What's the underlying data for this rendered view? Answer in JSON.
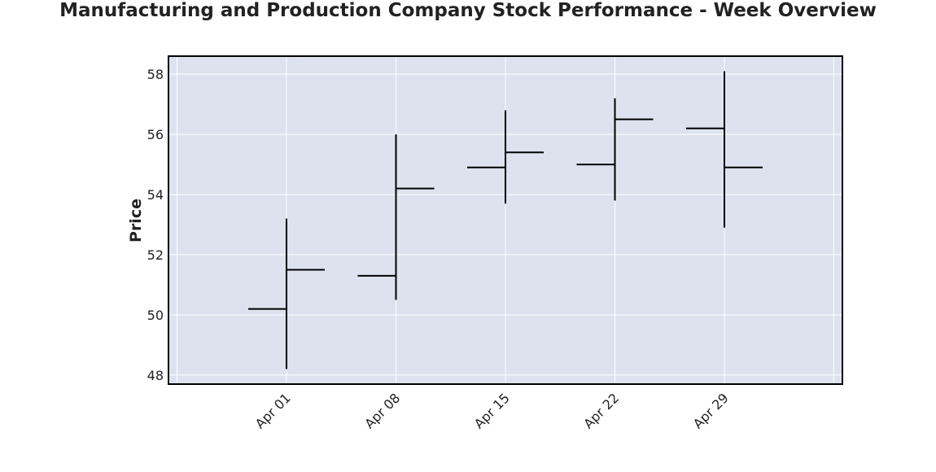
{
  "chart_data": {
    "type": "ohlc",
    "title": "Manufacturing and Production Company Stock Performance - Week Overview",
    "xlabel": "",
    "ylabel": "Price",
    "x_tick_labels": [
      "Apr 01",
      "Apr 08",
      "Apr 15",
      "Apr 22",
      "Apr 29"
    ],
    "y_ticks": [
      48,
      50,
      52,
      54,
      56,
      58
    ],
    "ylim": [
      47.7,
      58.6
    ],
    "grid": true,
    "colors": {
      "plot_background": "#dde2ee",
      "grid": "#ffffff",
      "bar": "#000000",
      "frame": "#000000"
    },
    "series": [
      {
        "points": [
          {
            "date": "Apr 01",
            "open": 50.2,
            "high": 53.2,
            "low": 48.2,
            "close": 51.5
          },
          {
            "date": "Apr 08",
            "open": 51.3,
            "high": 56.0,
            "low": 50.5,
            "close": 54.2
          },
          {
            "date": "Apr 15",
            "open": 54.9,
            "high": 56.8,
            "low": 53.7,
            "close": 55.4
          },
          {
            "date": "Apr 22",
            "open": 55.0,
            "high": 57.2,
            "low": 53.8,
            "close": 56.5
          },
          {
            "date": "Apr 29",
            "open": 56.2,
            "high": 58.1,
            "low": 52.9,
            "close": 54.9
          }
        ]
      }
    ]
  }
}
